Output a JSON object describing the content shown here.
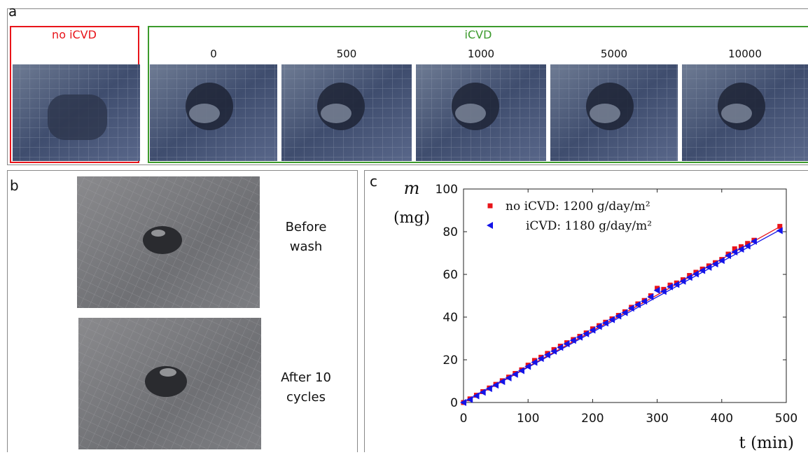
{
  "panel_a": {
    "label": "a",
    "control_label": "no iCVD",
    "treated_label": "iCVD",
    "cycles": [
      "0",
      "500",
      "1000",
      "5000",
      "10000"
    ]
  },
  "panel_b": {
    "label": "b",
    "before_caption": [
      "Before",
      "wash"
    ],
    "after_caption": [
      "After 10",
      "cycles"
    ]
  },
  "panel_c": {
    "label": "c"
  },
  "chart_data": {
    "type": "scatter",
    "ylabel": "m",
    "ylabel_unit": "(mg)",
    "xlabel": "t (min)",
    "xlim": [
      0,
      500
    ],
    "xticks": [
      0,
      100,
      200,
      300,
      400,
      500
    ],
    "ylim": [
      0,
      100
    ],
    "yticks": [
      0,
      20,
      40,
      60,
      80,
      100
    ],
    "x": [
      0,
      10,
      20,
      30,
      40,
      50,
      60,
      70,
      80,
      90,
      100,
      110,
      120,
      130,
      140,
      150,
      160,
      170,
      180,
      190,
      200,
      210,
      220,
      230,
      240,
      250,
      260,
      270,
      280,
      290,
      300,
      310,
      320,
      330,
      340,
      350,
      360,
      370,
      380,
      390,
      400,
      410,
      420,
      430,
      440,
      450,
      490
    ],
    "series": [
      {
        "name": "no iCVD: 1200 g/day/m²",
        "color": "#e8141a",
        "marker": "square",
        "values": [
          0,
          1.7,
          3.4,
          5.1,
          6.8,
          8.5,
          10.2,
          11.9,
          13.6,
          15.3,
          17.5,
          19.7,
          21.2,
          23.0,
          24.8,
          26.4,
          28.0,
          29.5,
          31.0,
          32.6,
          34.5,
          36.0,
          37.6,
          39.2,
          40.8,
          42.5,
          44.6,
          46.2,
          47.8,
          50.0,
          53.5,
          53.0,
          55.0,
          56.0,
          57.5,
          59.5,
          61.0,
          62.5,
          64.0,
          65.5,
          67.0,
          69.5,
          72.0,
          73.0,
          74.5,
          76.0,
          82.5
        ],
        "fit_x": [
          0,
          490
        ],
        "fit_values": [
          0,
          82.3
        ]
      },
      {
        "name": "iCVD: 1180 g/day/m²",
        "color": "#1414e8",
        "marker": "triangle-left",
        "values": [
          0,
          1.4,
          3.1,
          4.8,
          6.5,
          8.1,
          9.8,
          11.5,
          13.2,
          14.9,
          16.9,
          18.8,
          20.6,
          22.3,
          24.0,
          25.8,
          27.5,
          29.1,
          30.6,
          32.2,
          33.9,
          35.6,
          37.2,
          38.8,
          40.5,
          42.1,
          44.2,
          45.8,
          47.4,
          49.5,
          52.5,
          52.0,
          54.2,
          55.3,
          56.8,
          58.6,
          60.2,
          61.8,
          63.3,
          64.9,
          66.5,
          68.8,
          70.5,
          71.8,
          73.3,
          75.5,
          80.5
        ],
        "fit_x": [
          0,
          490
        ],
        "fit_values": [
          0,
          80.8
        ]
      }
    ]
  }
}
